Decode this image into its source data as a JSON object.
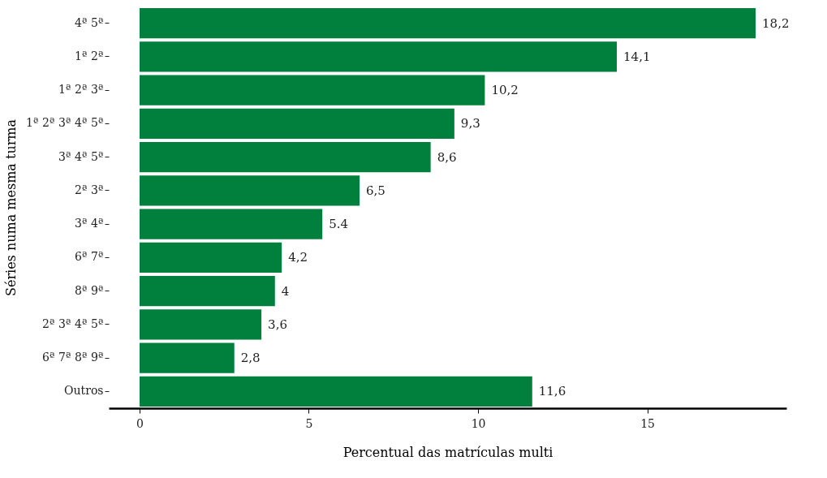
{
  "chart_data": {
    "type": "bar",
    "orientation": "horizontal",
    "xlabel": "Percentual das matrículas multi",
    "ylabel": "Séries numa mesma turma",
    "categories": [
      "4ª 5ª",
      "1ª 2ª",
      "1ª 2ª 3ª",
      "1ª 2ª 3ª 4ª 5ª",
      "3ª 4ª 5ª",
      "2ª 3ª",
      "3ª 4ª",
      "6ª 7ª",
      "8ª 9ª",
      "2ª 3ª 4ª 5ª",
      "6ª 7ª 8ª 9ª",
      "Outros"
    ],
    "values": [
      18.2,
      14.1,
      10.2,
      9.3,
      8.6,
      6.5,
      5.4,
      4.2,
      4,
      3.6,
      2.8,
      11.6
    ],
    "value_labels": [
      "18,2",
      "14,1",
      "10,2",
      "9,3",
      "8,6",
      "6,5",
      "5.4",
      "4,2",
      "4",
      "3,6",
      "2,8",
      "11,6"
    ],
    "color": "#007f3d",
    "xlim": [
      -0.91,
      19.11
    ],
    "xticks": [
      0,
      5,
      10,
      15
    ],
    "grid": false
  }
}
